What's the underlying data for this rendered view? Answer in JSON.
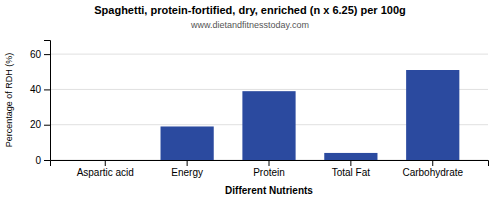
{
  "chart_data": {
    "type": "bar",
    "title": "Spaghetti, protein-fortified, dry, enriched (n x 6.25) per 100g",
    "subtitle": "www.dietandfitnesstoday.com",
    "categories": [
      "Aspartic acid",
      "Energy",
      "Protein",
      "Total Fat",
      "Carbohydrate"
    ],
    "values": [
      0,
      19,
      39,
      4,
      51
    ],
    "color": "#2b4a9f",
    "xlabel": "Different Nutrients",
    "ylabel": "Percentage of RDH (%)",
    "ylim": [
      0,
      68
    ],
    "yticks": [
      0,
      20,
      40,
      60
    ],
    "grid": true
  }
}
